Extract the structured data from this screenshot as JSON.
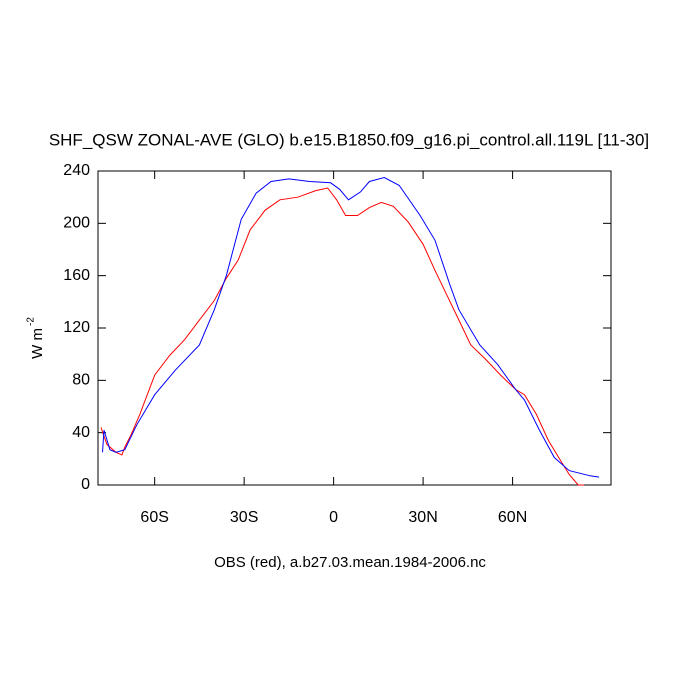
{
  "chart_data": {
    "type": "line",
    "title": "SHF_QSW ZONAL-AVE (GLO) b.e15.B1850.f09_g16.pi_control.all.119L [11-30]",
    "y_label": "W m",
    "y_label_sup": "-2",
    "x_label": "OBS (red), a.b27.03.mean.1984-2006.nc",
    "xlim": [
      -79,
      93
    ],
    "ylim": [
      0,
      240
    ],
    "xticks": [
      {
        "value": -60,
        "label": "60S"
      },
      {
        "value": -30,
        "label": "30S"
      },
      0,
      {
        "value": 30,
        "label": "30N"
      },
      {
        "value": 60,
        "label": "60N"
      }
    ],
    "yticks": [
      0,
      40,
      80,
      120,
      160,
      200,
      240
    ],
    "series": [
      {
        "color": "#ff0000",
        "x": [
          -78,
          -76,
          -73,
          -71,
          -70,
          -68,
          -65,
          -60,
          -55,
          -50,
          -45,
          -40,
          -36,
          -32,
          -28,
          -23,
          -18,
          -12,
          -6,
          -2,
          1,
          4,
          8,
          12,
          16,
          20,
          25,
          30,
          34,
          38,
          42,
          46,
          51,
          56,
          61,
          64,
          68,
          72,
          76,
          79,
          82,
          84
        ],
        "values": [
          44,
          31,
          25,
          23,
          29,
          38,
          54,
          84,
          99,
          111,
          126,
          141,
          158,
          172,
          195,
          210,
          218,
          220,
          225,
          227,
          218,
          206,
          206,
          212,
          216,
          213,
          201,
          184,
          164,
          145,
          126,
          107,
          96,
          84,
          73,
          69,
          54,
          34,
          19,
          8,
          0,
          0
        ]
      },
      {
        "color": "#0000ff",
        "x": [
          -77.5,
          -77,
          -75,
          -73,
          -70,
          -66,
          -60,
          -53,
          -45,
          -40,
          -36,
          -31,
          -26,
          -21,
          -15,
          -8,
          -1,
          2,
          5,
          9,
          12,
          17,
          22,
          29,
          34,
          39,
          42,
          49,
          55,
          61,
          64,
          69,
          74,
          79,
          86,
          89
        ],
        "values": [
          25,
          42,
          27,
          25,
          27,
          46,
          69,
          88,
          107,
          134,
          160,
          203,
          223,
          232,
          234,
          232,
          231,
          226,
          218,
          224,
          232,
          235,
          229,
          206,
          187,
          153,
          134,
          107,
          92,
          73,
          65,
          42,
          21,
          11,
          7,
          6
        ]
      }
    ]
  }
}
